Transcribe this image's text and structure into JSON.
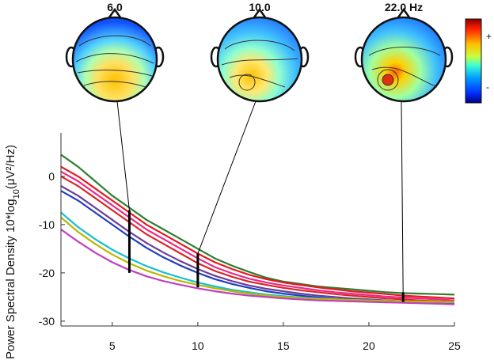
{
  "chart_data": {
    "type": "line",
    "ylabel": "Power Spectral Density 10*log",
    "ylabel_sub": "10",
    "ylabel_unit": "(μV²/Hz)",
    "xlim": [
      2,
      25
    ],
    "ylim": [
      -31,
      9
    ],
    "x_ticks": [
      5,
      10,
      15,
      20,
      25
    ],
    "y_ticks": [
      0,
      -10,
      -20,
      -30
    ],
    "grid": false,
    "x": [
      2,
      3,
      4,
      5,
      6,
      7,
      8,
      9,
      10,
      11,
      12,
      13,
      14,
      15,
      16,
      17,
      18,
      19,
      20,
      21,
      22,
      23,
      24,
      25
    ],
    "series": [
      {
        "color": "#2e7d32",
        "values": [
          4.5,
          2.0,
          -1.0,
          -4.0,
          -6.5,
          -9.0,
          -11.0,
          -13.0,
          -15.0,
          -17.0,
          -18.5,
          -19.8,
          -21.0,
          -21.8,
          -22.3,
          -22.8,
          -23.1,
          -23.4,
          -23.7,
          -24.0,
          -24.2,
          -24.3,
          -24.4,
          -24.5
        ]
      },
      {
        "color": "#e31a1c",
        "values": [
          2.0,
          0.0,
          -2.5,
          -5.0,
          -7.5,
          -10.0,
          -12.0,
          -14.0,
          -16.0,
          -17.8,
          -19.2,
          -20.4,
          -21.3,
          -22.0,
          -22.5,
          -23.0,
          -23.4,
          -23.8,
          -24.1,
          -24.4,
          -24.7,
          -24.9,
          -25.1,
          -25.3
        ]
      },
      {
        "color": "#e7298a",
        "values": [
          1.0,
          -1.0,
          -3.5,
          -6.0,
          -8.5,
          -11.0,
          -13.0,
          -15.0,
          -17.0,
          -18.8,
          -20.1,
          -21.2,
          -22.0,
          -22.6,
          -23.1,
          -23.6,
          -24.0,
          -24.3,
          -24.6,
          -24.9,
          -25.1,
          -25.3,
          -25.5,
          -25.7
        ]
      },
      {
        "color": "#d62728",
        "values": [
          0.0,
          -2.0,
          -4.5,
          -7.0,
          -9.5,
          -12.0,
          -14.0,
          -16.0,
          -18.0,
          -19.6,
          -20.8,
          -21.8,
          -22.5,
          -23.1,
          -23.6,
          -24.0,
          -24.4,
          -24.7,
          -25.0,
          -25.3,
          -25.5,
          -25.7,
          -25.9,
          -26.0
        ]
      },
      {
        "color": "#6a3d9a",
        "values": [
          -2.0,
          -4.0,
          -6.5,
          -9.0,
          -11.5,
          -13.8,
          -15.8,
          -17.6,
          -19.2,
          -20.6,
          -21.7,
          -22.6,
          -23.3,
          -23.8,
          -24.3,
          -24.7,
          -25.0,
          -25.3,
          -25.5,
          -25.7,
          -25.9,
          -26.0,
          -26.1,
          -26.2
        ]
      },
      {
        "color": "#1f3fbf",
        "values": [
          -3.0,
          -5.0,
          -7.5,
          -10.0,
          -12.5,
          -14.8,
          -16.8,
          -18.5,
          -20.0,
          -21.3,
          -22.3,
          -23.1,
          -23.8,
          -24.3,
          -24.7,
          -25.1,
          -25.4,
          -25.6,
          -25.8,
          -26.0,
          -26.1,
          -26.2,
          -26.3,
          -26.4
        ]
      },
      {
        "color": "#17becf",
        "values": [
          -7.5,
          -10.5,
          -13.0,
          -15.2,
          -17.0,
          -18.6,
          -19.9,
          -21.0,
          -22.0,
          -22.8,
          -23.5,
          -24.0,
          -24.5,
          -24.8,
          -25.1,
          -25.3,
          -25.5,
          -25.6,
          -25.7,
          -25.8,
          -25.9,
          -26.0,
          -26.0,
          -26.1
        ]
      },
      {
        "color": "#b8b800",
        "values": [
          -8.5,
          -11.5,
          -14.0,
          -16.2,
          -18.0,
          -19.5,
          -20.7,
          -21.7,
          -22.5,
          -23.2,
          -23.8,
          -24.3,
          -24.7,
          -25.0,
          -25.2,
          -25.4,
          -25.5,
          -25.6,
          -25.7,
          -25.8,
          -25.9,
          -25.9,
          -26.0,
          -26.0
        ]
      },
      {
        "color": "#c040c0",
        "values": [
          -11.0,
          -13.5,
          -15.8,
          -17.8,
          -19.4,
          -20.7,
          -21.7,
          -22.5,
          -23.2,
          -23.8,
          -24.3,
          -24.7,
          -25.0,
          -25.3,
          -25.5,
          -25.7,
          -25.8,
          -25.9,
          -26.0,
          -26.1,
          -26.2,
          -26.3,
          -26.4,
          -26.5
        ]
      }
    ],
    "markers": [
      {
        "freq": 6,
        "label": "6.0",
        "y_range": [
          -20,
          -7
        ]
      },
      {
        "freq": 10,
        "label": "10.0",
        "y_range": [
          -23,
          -16
        ]
      },
      {
        "freq": 22,
        "label": "22.0 Hz",
        "y_range": [
          -26,
          -24
        ]
      }
    ],
    "colorbar": {
      "top_label": "+",
      "bottom_label": "-"
    }
  }
}
